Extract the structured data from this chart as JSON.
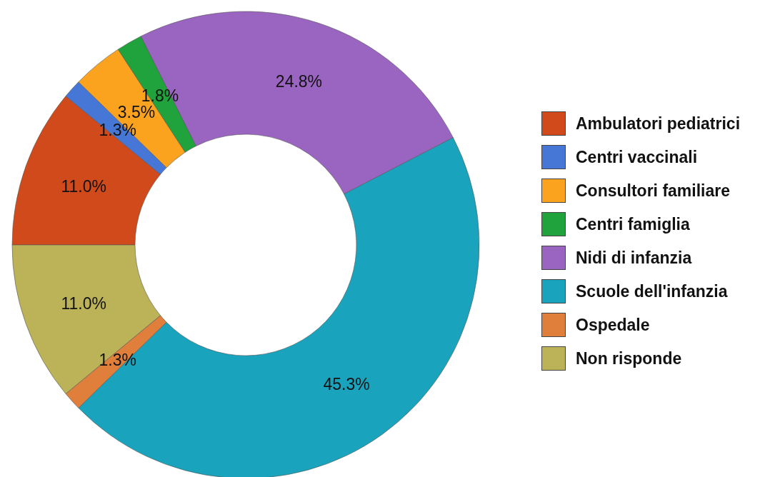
{
  "chart_data": {
    "type": "donut",
    "categories": [
      "Ambulatori pediatrici",
      "Centri vaccinali",
      "Consultori familiare",
      "Centri famiglia",
      "Nidi di infanzia",
      "Scuole dell'infanzia",
      "Ospedale",
      "Non risponde"
    ],
    "values": [
      11.0,
      1.3,
      3.5,
      1.8,
      24.8,
      45.3,
      1.3,
      11.0
    ],
    "colors": [
      "#d04a1b",
      "#4677d6",
      "#fba31f",
      "#20a23c",
      "#9a64c1",
      "#1aa3bd",
      "#e07f3b",
      "#bcb359"
    ],
    "value_labels": [
      "11.0%",
      "1.3%",
      "3.5%",
      "1.8%",
      "24.8%",
      "45.3%",
      "1.3%",
      "11.0%"
    ],
    "legend": "right"
  }
}
